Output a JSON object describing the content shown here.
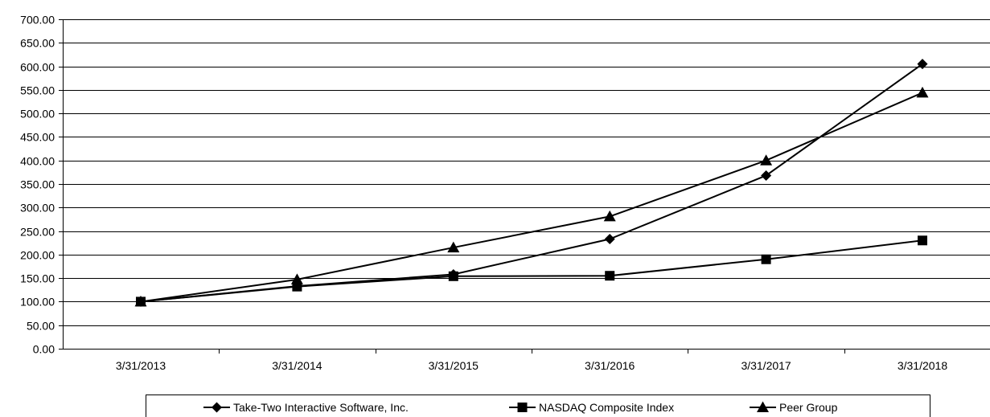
{
  "chart_data": {
    "type": "line",
    "title": "",
    "xlabel": "",
    "ylabel": "",
    "categories": [
      "3/31/2013",
      "3/31/2014",
      "3/31/2015",
      "3/31/2016",
      "3/31/2017",
      "3/31/2018"
    ],
    "ylim": [
      0,
      700
    ],
    "ytick_step": 50,
    "ytick_labels": [
      "0.00",
      "50.00",
      "100.00",
      "150.00",
      "200.00",
      "250.00",
      "300.00",
      "350.00",
      "400.00",
      "450.00",
      "500.00",
      "550.00",
      "600.00",
      "650.00",
      "700.00"
    ],
    "grid": "horizontal",
    "legend_position": "bottom",
    "series": [
      {
        "name": "Take-Two Interactive Software, Inc.",
        "marker": "diamond",
        "values": [
          100.0,
          133.0,
          158.0,
          233.0,
          368.0,
          605.0
        ]
      },
      {
        "name": "NASDAQ Composite Index",
        "marker": "square",
        "values": [
          100.0,
          132.0,
          154.0,
          155.0,
          190.0,
          230.0
        ]
      },
      {
        "name": "Peer Group",
        "marker": "triangle",
        "values": [
          100.0,
          147.0,
          215.0,
          281.0,
          400.0,
          544.0
        ]
      }
    ],
    "colors": {
      "line": "#000000",
      "grid": "#000000",
      "background": "#ffffff"
    }
  }
}
